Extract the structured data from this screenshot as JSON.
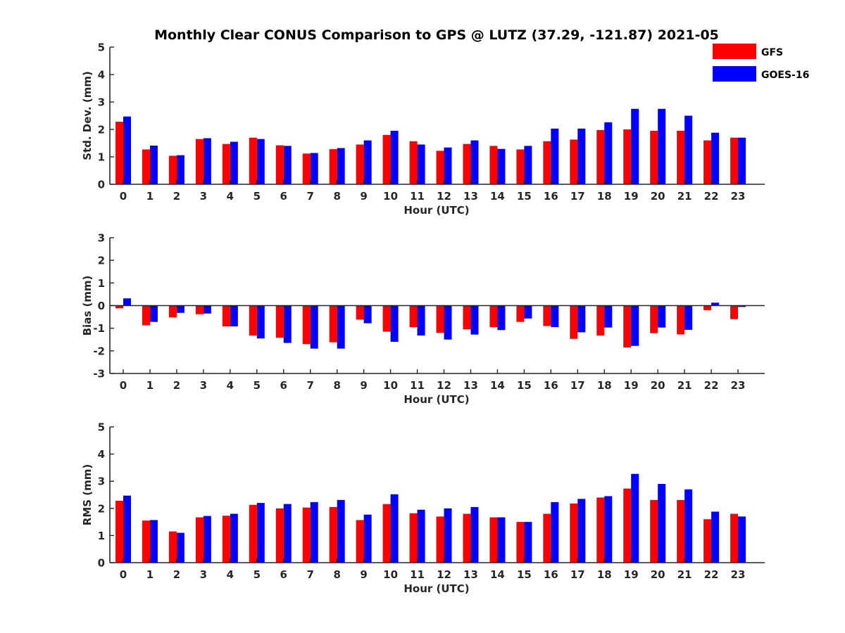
{
  "chart_data": {
    "type": "bar",
    "title": "Monthly Clear CONUS Comparison to GPS @ LUTZ (37.29, -121.87) 2021-05",
    "legend": {
      "placement": "top-right",
      "entries": [
        {
          "name": "GFS",
          "color": "#ff0000"
        },
        {
          "name": "GOES-16",
          "color": "#0000ff"
        }
      ]
    },
    "categories": [
      "0",
      "1",
      "2",
      "3",
      "4",
      "5",
      "6",
      "7",
      "8",
      "9",
      "10",
      "11",
      "12",
      "13",
      "14",
      "15",
      "16",
      "17",
      "18",
      "19",
      "20",
      "21",
      "22",
      "23"
    ],
    "panels": [
      {
        "ylabel": "Std. Dev. (mm)",
        "xlabel": "Hour (UTC)",
        "ylim": [
          0,
          5
        ],
        "yticks": [
          "0",
          "1",
          "2",
          "3",
          "4",
          "5"
        ],
        "series": [
          {
            "name": "GFS",
            "color": "#ff0000",
            "values": [
              2.28,
              1.27,
              1.04,
              1.65,
              1.47,
              1.7,
              1.42,
              1.12,
              1.28,
              1.45,
              1.8,
              1.57,
              1.22,
              1.47,
              1.4,
              1.27,
              1.57,
              1.63,
              1.98,
              2.0,
              1.95,
              1.95,
              1.6,
              1.7
            ]
          },
          {
            "name": "GOES-16",
            "color": "#0000ff",
            "values": [
              2.47,
              1.41,
              1.06,
              1.68,
              1.55,
              1.65,
              1.4,
              1.14,
              1.32,
              1.6,
              1.95,
              1.45,
              1.34,
              1.6,
              1.29,
              1.4,
              2.03,
              2.03,
              2.26,
              2.75,
              2.75,
              2.5,
              1.88,
              1.7
            ]
          }
        ]
      },
      {
        "ylabel": "Bias (mm)",
        "xlabel": "Hour (UTC)",
        "ylim": [
          -3,
          3
        ],
        "yticks": [
          "-3",
          "-2",
          "-1",
          "0",
          "1",
          "2",
          "3"
        ],
        "series": [
          {
            "name": "GFS",
            "color": "#ff0000",
            "values": [
              -0.12,
              -0.87,
              -0.52,
              -0.38,
              -0.92,
              -1.32,
              -1.42,
              -1.7,
              -1.62,
              -0.62,
              -1.15,
              -0.95,
              -1.2,
              -1.05,
              -0.95,
              -0.72,
              -0.9,
              -1.47,
              -1.32,
              -1.85,
              -1.22,
              -1.27,
              -0.2,
              -0.6
            ]
          },
          {
            "name": "GOES-16",
            "color": "#0000ff",
            "values": [
              0.32,
              -0.72,
              -0.32,
              -0.35,
              -0.92,
              -1.45,
              -1.65,
              -1.9,
              -1.9,
              -0.78,
              -1.6,
              -1.32,
              -1.5,
              -1.28,
              -1.08,
              -0.57,
              -0.95,
              -1.18,
              -0.97,
              -1.78,
              -0.97,
              -1.07,
              0.13,
              -0.06
            ]
          }
        ]
      },
      {
        "ylabel": "RMS (mm)",
        "xlabel": "Hour (UTC)",
        "ylim": [
          0,
          5
        ],
        "yticks": [
          "0",
          "1",
          "2",
          "3",
          "4",
          "5"
        ],
        "series": [
          {
            "name": "GFS",
            "color": "#ff0000",
            "values": [
              2.28,
              1.55,
              1.15,
              1.67,
              1.73,
              2.13,
              2.0,
              2.03,
              2.05,
              1.57,
              2.16,
              1.82,
              1.7,
              1.8,
              1.67,
              1.5,
              1.8,
              2.18,
              2.4,
              2.73,
              2.31,
              2.31,
              1.6,
              1.8
            ]
          },
          {
            "name": "GOES-16",
            "color": "#0000ff",
            "values": [
              2.47,
              1.57,
              1.1,
              1.72,
              1.8,
              2.2,
              2.16,
              2.23,
              2.31,
              1.77,
              2.52,
              1.95,
              2.0,
              2.05,
              1.67,
              1.5,
              2.23,
              2.35,
              2.45,
              3.27,
              2.9,
              2.7,
              1.88,
              1.7
            ]
          }
        ]
      }
    ]
  }
}
